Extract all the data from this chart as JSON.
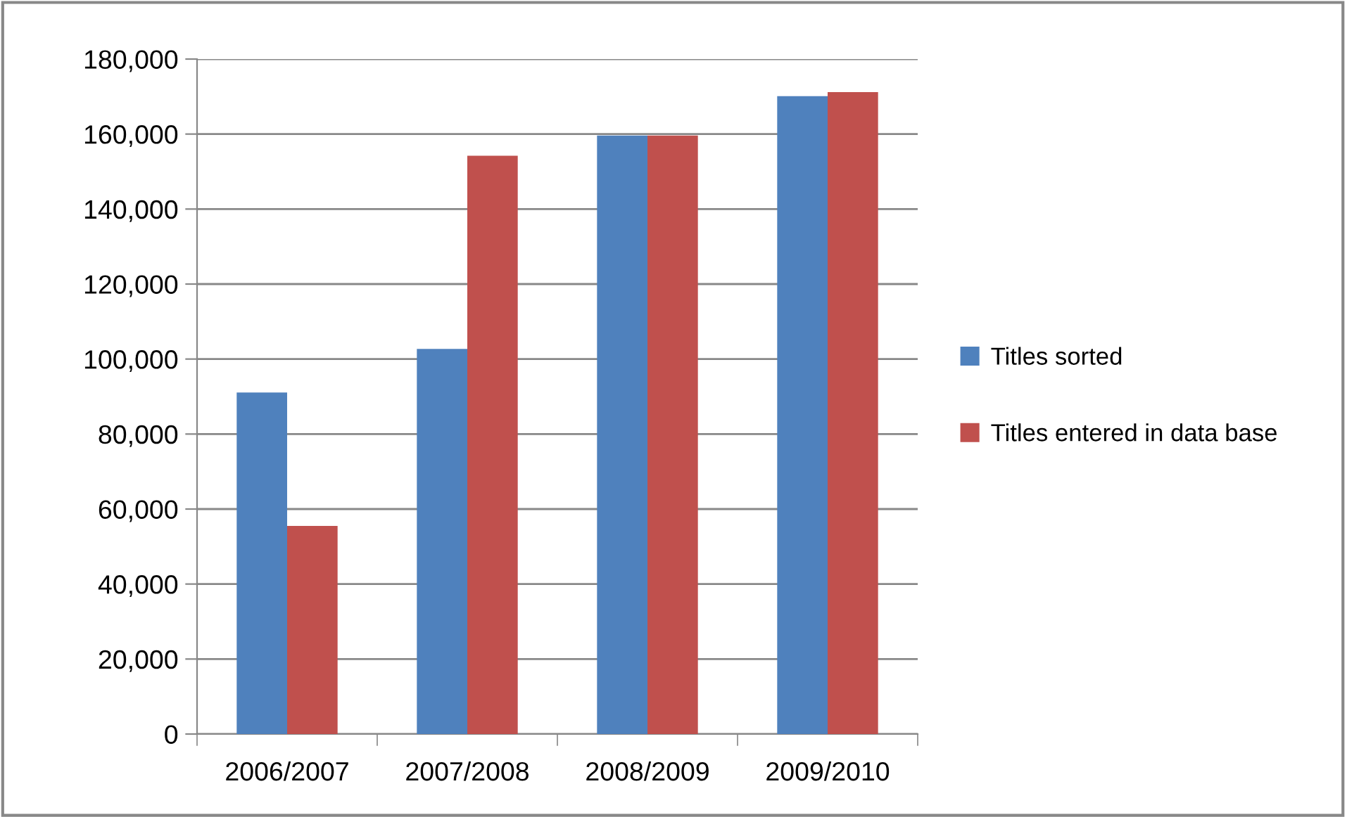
{
  "chart_data": {
    "type": "bar",
    "categories": [
      "2006/2007",
      "2007/2008",
      "2008/2009",
      "2009/2010"
    ],
    "series": [
      {
        "name": "Titles sorted",
        "color": "#4f81bd",
        "values": [
          91100,
          102700,
          159600,
          170100
        ]
      },
      {
        "name": "Titles entered in data base",
        "color": "#c0504d",
        "values": [
          55500,
          154200,
          159600,
          171200
        ]
      }
    ],
    "ylim": [
      0,
      180000
    ],
    "yticks": [
      {
        "value": 0,
        "label": "0"
      },
      {
        "value": 20000,
        "label": "20,000"
      },
      {
        "value": 40000,
        "label": "40,000"
      },
      {
        "value": 60000,
        "label": "60,000"
      },
      {
        "value": 80000,
        "label": "80,000"
      },
      {
        "value": 100000,
        "label": "100,000"
      },
      {
        "value": 120000,
        "label": "120,000"
      },
      {
        "value": 140000,
        "label": "140,000"
      },
      {
        "value": 160000,
        "label": "160,000"
      },
      {
        "value": 180000,
        "label": "180,000"
      }
    ],
    "grid": "y",
    "legend": "right"
  }
}
